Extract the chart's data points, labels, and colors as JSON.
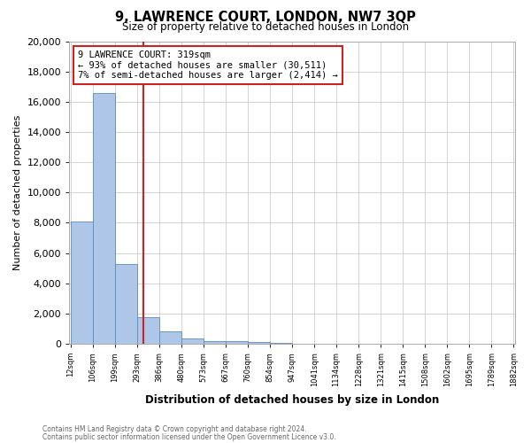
{
  "title": "9, LAWRENCE COURT, LONDON, NW7 3QP",
  "subtitle": "Size of property relative to detached houses in London",
  "xlabel": "Distribution of detached houses by size in London",
  "ylabel": "Number of detached properties",
  "footnote1": "Contains HM Land Registry data © Crown copyright and database right 2024.",
  "footnote2": "Contains public sector information licensed under the Open Government Licence v3.0.",
  "annotation_title": "9 LAWRENCE COURT: 319sqm",
  "annotation_line2": "← 93% of detached houses are smaller (30,511)",
  "annotation_line3": "7% of semi-detached houses are larger (2,414) →",
  "property_size": 319,
  "bins": [
    12,
    106,
    199,
    293,
    386,
    480,
    573,
    667,
    760,
    854,
    947,
    1041,
    1134,
    1228,
    1321,
    1415,
    1508,
    1602,
    1695,
    1789,
    1882
  ],
  "counts": [
    8100,
    16600,
    5300,
    1750,
    800,
    380,
    200,
    150,
    100,
    60,
    0,
    0,
    0,
    0,
    0,
    0,
    0,
    0,
    0,
    0
  ],
  "bar_color": "#aec6e8",
  "bar_edge_color": "#5b8db8",
  "highlight_color": "#cc2222",
  "grid_color": "#cccccc",
  "background_color": "#ffffff",
  "ylim": [
    0,
    20000
  ],
  "yticks": [
    0,
    2000,
    4000,
    6000,
    8000,
    10000,
    12000,
    14000,
    16000,
    18000,
    20000
  ]
}
